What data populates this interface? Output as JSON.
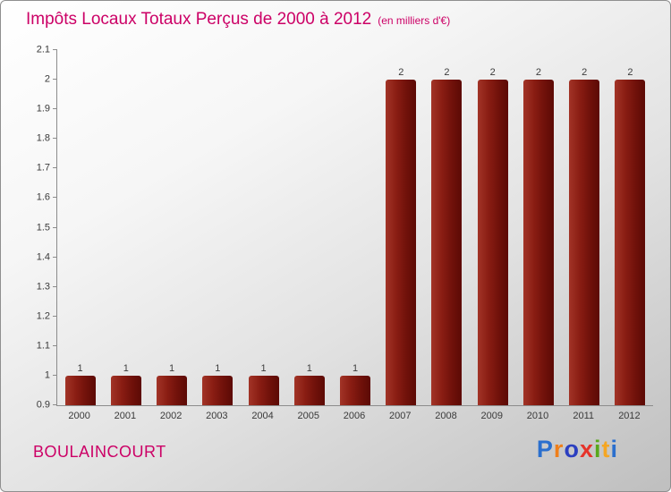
{
  "header": {
    "title": "Impôts Locaux Totaux Perçus de 2000 à 2012",
    "subtitle": "(en milliers d'€)"
  },
  "footer": {
    "commune": "BOULAINCOURT",
    "logo": {
      "text": "Proxiti",
      "letters": [
        {
          "char": "P",
          "color": "#2b6fce"
        },
        {
          "char": "r",
          "color": "#ef7f1a"
        },
        {
          "char": "o",
          "color": "#2b3fc0"
        },
        {
          "char": "x",
          "color": "#e6332a"
        },
        {
          "char": "i",
          "color": "#59a81c"
        },
        {
          "char": "t",
          "color": "#f5a623"
        },
        {
          "char": "i",
          "color": "#2b6fce"
        }
      ]
    }
  },
  "colors": {
    "accent": "#cc0066",
    "bar_light": "#a23427",
    "bar_dark": "#5c0a05",
    "axis": "#8c8c8c",
    "tick_text": "#3a3a3a"
  },
  "chart_data": {
    "type": "bar",
    "title": "Impôts Locaux Totaux Perçus de 2000 à 2012",
    "subtitle": "(en milliers d'€)",
    "categories": [
      "2000",
      "2001",
      "2002",
      "2003",
      "2004",
      "2005",
      "2006",
      "2007",
      "2008",
      "2009",
      "2010",
      "2011",
      "2012"
    ],
    "values": [
      1,
      1,
      1,
      1,
      1,
      1,
      1,
      2,
      2,
      2,
      2,
      2,
      2
    ],
    "bar_labels": [
      "1",
      "1",
      "1",
      "1",
      "1",
      "1",
      "1",
      "2",
      "2",
      "2",
      "2",
      "2",
      "2"
    ],
    "xlabel": "",
    "ylabel": "",
    "ylim": [
      0.9,
      2.1
    ],
    "yticks": [
      "0.9",
      "1",
      "1.1",
      "1.2",
      "1.3",
      "1.4",
      "1.5",
      "1.6",
      "1.7",
      "1.8",
      "1.9",
      "2",
      "2.1"
    ],
    "grid": false,
    "legend": false
  }
}
